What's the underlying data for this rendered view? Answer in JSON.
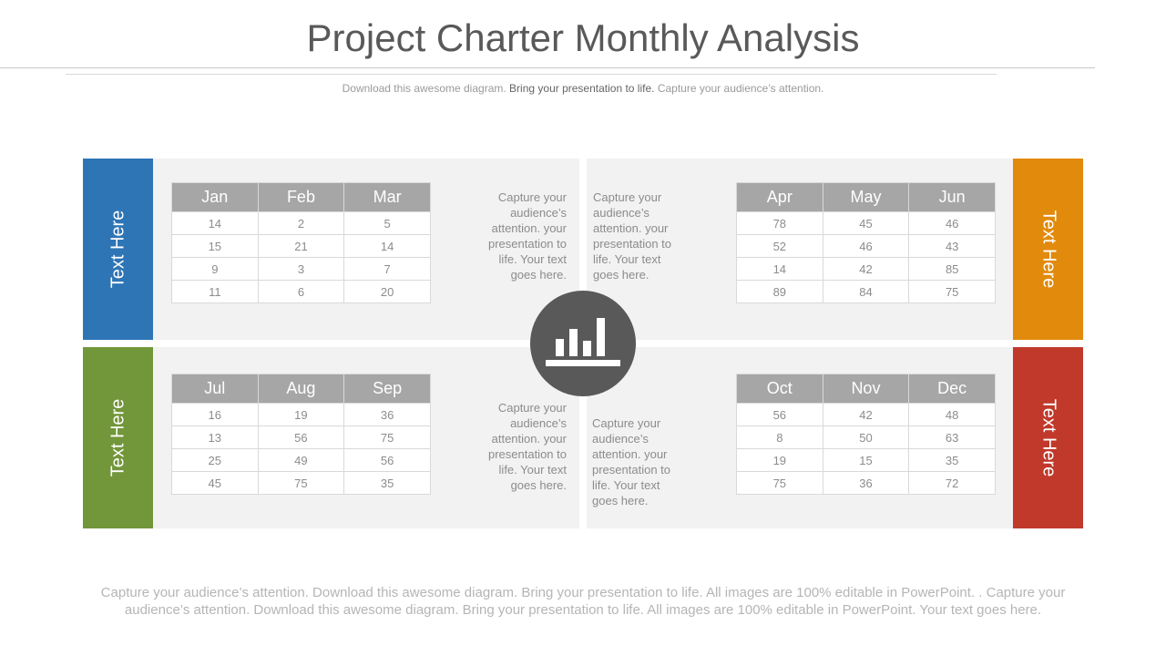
{
  "header": {
    "title": "Project Charter Monthly Analysis",
    "subtitle_pre": "Download this awesome diagram.",
    "subtitle_mid": "Bring your presentation to life.",
    "subtitle_post": "Capture your audience’s attention."
  },
  "colors": {
    "q1": "#2e75b6",
    "q2": "#e28a0c",
    "q3": "#72963a",
    "q4": "#c0392b",
    "panel": "#f2f2f2",
    "table_header": "#a6a6a6",
    "hub": "#595959"
  },
  "hub_icon": "bar-chart-icon",
  "quadrants": {
    "q1": {
      "side_label": "Text Here",
      "headers": [
        "Jan",
        "Feb",
        "Mar"
      ],
      "rows": [
        [
          "14",
          "2",
          "5"
        ],
        [
          "15",
          "21",
          "14"
        ],
        [
          "9",
          "3",
          "7"
        ],
        [
          "11",
          "6",
          "20"
        ]
      ],
      "note": "Capture your audience’s attention. your presentation to life. Your text goes here."
    },
    "q2": {
      "side_label": "Text Here",
      "headers": [
        "Apr",
        "May",
        "Jun"
      ],
      "rows": [
        [
          "78",
          "45",
          "46"
        ],
        [
          "52",
          "46",
          "43"
        ],
        [
          "14",
          "42",
          "85"
        ],
        [
          "89",
          "84",
          "75"
        ]
      ],
      "note": "Capture your audience’s attention. your presentation to life. Your text goes here."
    },
    "q3": {
      "side_label": "Text Here",
      "headers": [
        "Jul",
        "Aug",
        "Sep"
      ],
      "rows": [
        [
          "16",
          "19",
          "36"
        ],
        [
          "13",
          "56",
          "75"
        ],
        [
          "25",
          "49",
          "56"
        ],
        [
          "45",
          "75",
          "35"
        ]
      ],
      "note": "Capture your audience’s attention. your presentation to life. Your text goes here."
    },
    "q4": {
      "side_label": "Text Here",
      "headers": [
        "Oct",
        "Nov",
        "Dec"
      ],
      "rows": [
        [
          "56",
          "42",
          "48"
        ],
        [
          "8",
          "50",
          "63"
        ],
        [
          "19",
          "15",
          "35"
        ],
        [
          "75",
          "36",
          "72"
        ]
      ],
      "note": "Capture your audience’s attention. your presentation to life. Your text goes here."
    }
  },
  "footer": {
    "text": "Capture your audience’s attention. Download this awesome diagram. Bring your presentation to life. All images are 100% editable in PowerPoint. . Capture your audience’s attention. Download this awesome diagram. Bring your presentation to life. All images are 100% editable in PowerPoint. Your text goes here."
  }
}
